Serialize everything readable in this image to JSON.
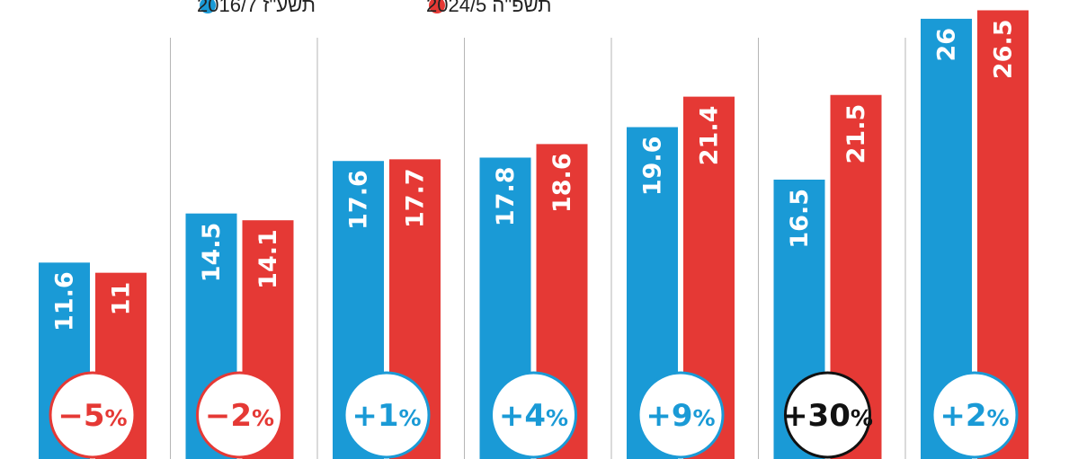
{
  "chart_data": {
    "type": "bar",
    "title": "",
    "xlabel": "",
    "ylabel": "",
    "ylim": [
      0,
      28
    ],
    "grid": false,
    "legend": "top",
    "categories": [
      "",
      "",
      "",
      "",
      "",
      "",
      ""
    ],
    "series": [
      {
        "name": "תשע\"ז 2016/7",
        "color": "#1a9ad6",
        "values": [
          11.6,
          14.5,
          17.6,
          17.8,
          19.6,
          16.5,
          26
        ],
        "labels": [
          "11.6",
          "14.5",
          "17.6",
          "17.8",
          "19.6",
          "16.5",
          "26"
        ]
      },
      {
        "name": "תשפ\"ה 2024/5",
        "color": "#e53935",
        "values": [
          11,
          14.1,
          17.7,
          18.6,
          21.4,
          21.5,
          26.5
        ],
        "labels": [
          "11",
          "14.1",
          "17.7",
          "18.6",
          "21.4",
          "21.5",
          "26.5"
        ]
      }
    ],
    "changes": [
      {
        "label": "−5",
        "symbol": "%",
        "color": "#e53935"
      },
      {
        "label": "−2",
        "symbol": "%",
        "color": "#e53935"
      },
      {
        "label": "+1",
        "symbol": "%",
        "color": "#1a9ad6"
      },
      {
        "label": "+4",
        "symbol": "%",
        "color": "#1a9ad6"
      },
      {
        "label": "+9",
        "symbol": "%",
        "color": "#1a9ad6"
      },
      {
        "label": "+30",
        "symbol": "%",
        "color": "#111111"
      },
      {
        "label": "+2",
        "symbol": "%",
        "color": "#1a9ad6"
      }
    ],
    "separator_color": "#b5b5b5"
  }
}
